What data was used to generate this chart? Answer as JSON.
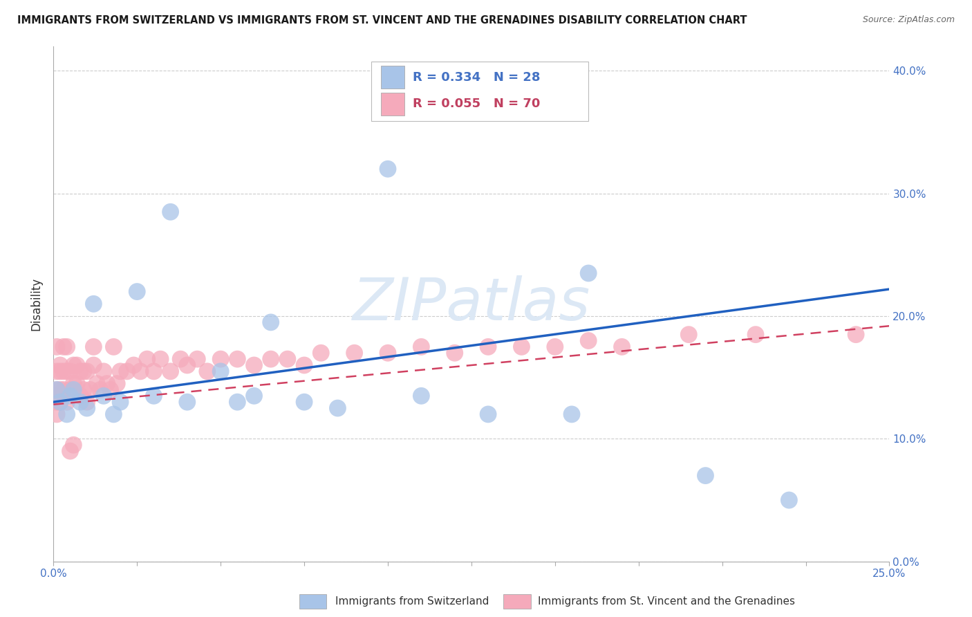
{
  "title": "IMMIGRANTS FROM SWITZERLAND VS IMMIGRANTS FROM ST. VINCENT AND THE GRENADINES DISABILITY CORRELATION CHART",
  "source": "Source: ZipAtlas.com",
  "ylabel": "Disability",
  "xlim": [
    0.0,
    0.25
  ],
  "ylim": [
    0.0,
    0.42
  ],
  "ytick_vals": [
    0.0,
    0.1,
    0.2,
    0.3,
    0.4
  ],
  "ytick_labels": [
    "0.0%",
    "10.0%",
    "20.0%",
    "30.0%",
    "40.0%"
  ],
  "grid_color": "#cccccc",
  "background_color": "#ffffff",
  "series1_label": "Immigrants from Switzerland",
  "series2_label": "Immigrants from St. Vincent and the Grenadines",
  "series1_color": "#a8c4e8",
  "series2_color": "#f5aabb",
  "series1_R": 0.334,
  "series1_N": 28,
  "series2_R": 0.055,
  "series2_N": 70,
  "series1_line_color": "#2060c0",
  "series2_line_color": "#d04060",
  "watermark_color": "#dce8f5",
  "series1_x": [
    0.001,
    0.002,
    0.004,
    0.005,
    0.006,
    0.008,
    0.01,
    0.012,
    0.015,
    0.018,
    0.02,
    0.025,
    0.03,
    0.035,
    0.04,
    0.05,
    0.055,
    0.06,
    0.065,
    0.075,
    0.085,
    0.1,
    0.11,
    0.13,
    0.155,
    0.16,
    0.195,
    0.22
  ],
  "series1_y": [
    0.14,
    0.13,
    0.12,
    0.135,
    0.14,
    0.13,
    0.125,
    0.21,
    0.135,
    0.12,
    0.13,
    0.22,
    0.135,
    0.285,
    0.13,
    0.155,
    0.13,
    0.135,
    0.195,
    0.13,
    0.125,
    0.32,
    0.135,
    0.12,
    0.12,
    0.235,
    0.07,
    0.05
  ],
  "series2_x": [
    0.001,
    0.001,
    0.001,
    0.001,
    0.001,
    0.002,
    0.002,
    0.002,
    0.002,
    0.003,
    0.003,
    0.003,
    0.004,
    0.004,
    0.004,
    0.005,
    0.005,
    0.005,
    0.006,
    0.006,
    0.006,
    0.007,
    0.007,
    0.008,
    0.008,
    0.009,
    0.009,
    0.01,
    0.01,
    0.011,
    0.012,
    0.012,
    0.013,
    0.014,
    0.015,
    0.016,
    0.017,
    0.018,
    0.019,
    0.02,
    0.022,
    0.024,
    0.026,
    0.028,
    0.03,
    0.032,
    0.035,
    0.038,
    0.04,
    0.043,
    0.046,
    0.05,
    0.055,
    0.06,
    0.065,
    0.07,
    0.075,
    0.08,
    0.09,
    0.1,
    0.11,
    0.12,
    0.13,
    0.14,
    0.15,
    0.16,
    0.17,
    0.19,
    0.21,
    0.24
  ],
  "series2_y": [
    0.14,
    0.13,
    0.12,
    0.155,
    0.175,
    0.14,
    0.155,
    0.13,
    0.16,
    0.14,
    0.155,
    0.175,
    0.13,
    0.155,
    0.175,
    0.14,
    0.155,
    0.09,
    0.145,
    0.16,
    0.095,
    0.145,
    0.16,
    0.135,
    0.155,
    0.14,
    0.155,
    0.13,
    0.155,
    0.14,
    0.16,
    0.175,
    0.145,
    0.14,
    0.155,
    0.145,
    0.14,
    0.175,
    0.145,
    0.155,
    0.155,
    0.16,
    0.155,
    0.165,
    0.155,
    0.165,
    0.155,
    0.165,
    0.16,
    0.165,
    0.155,
    0.165,
    0.165,
    0.16,
    0.165,
    0.165,
    0.16,
    0.17,
    0.17,
    0.17,
    0.175,
    0.17,
    0.175,
    0.175,
    0.175,
    0.18,
    0.175,
    0.185,
    0.185,
    0.185
  ]
}
